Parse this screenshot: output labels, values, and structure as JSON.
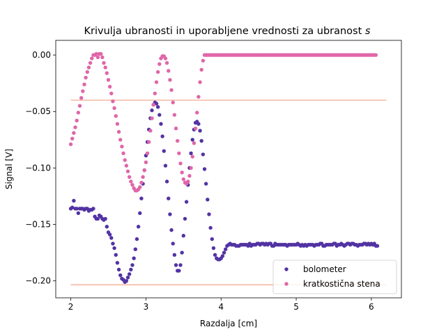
{
  "chart_data": {
    "type": "scatter",
    "title": "Krivulja ubranosti in uporabljene vrednosti za ubranost s",
    "xlabel": "Razdalja [cm]",
    "ylabel": "Signal [V]",
    "xlim": [
      1.8,
      6.4
    ],
    "ylim": [
      -0.215,
      0.013
    ],
    "x_ticks": [
      "2",
      "3",
      "4",
      "5",
      "6"
    ],
    "x_tick_values": [
      2,
      3,
      4,
      5,
      6
    ],
    "y_ticks": [
      "0.00",
      "−0.05",
      "−0.10",
      "−0.15",
      "−0.20"
    ],
    "y_tick_values": [
      0.0,
      -0.05,
      -0.1,
      -0.15,
      -0.2
    ],
    "grid": false,
    "legend_position": "bottom-right",
    "reference_lines": [
      {
        "y": -0.04,
        "x_range": [
          2.0,
          6.2
        ],
        "color": "#f4b9a2"
      },
      {
        "y": -0.2035,
        "x_range": [
          2.0,
          6.2
        ],
        "color": "#f4b9a2"
      }
    ],
    "series": [
      {
        "name": "bolometer",
        "color": "#5233a3",
        "x_start": 2.0,
        "x_step": 0.02,
        "values": [
          -0.136,
          -0.135,
          -0.129,
          -0.136,
          -0.136,
          -0.14,
          -0.136,
          -0.136,
          -0.136,
          -0.137,
          -0.136,
          -0.136,
          -0.138,
          -0.137,
          -0.137,
          -0.136,
          -0.143,
          -0.145,
          -0.145,
          -0.142,
          -0.143,
          -0.145,
          -0.146,
          -0.145,
          -0.152,
          -0.157,
          -0.159,
          -0.162,
          -0.167,
          -0.171,
          -0.177,
          -0.184,
          -0.19,
          -0.195,
          -0.198,
          -0.199,
          -0.201,
          -0.2,
          -0.197,
          -0.194,
          -0.19,
          -0.186,
          -0.18,
          -0.172,
          -0.163,
          -0.152,
          -0.14,
          -0.127,
          -0.114,
          -0.102,
          -0.089,
          -0.077,
          -0.066,
          -0.056,
          -0.049,
          -0.044,
          -0.042,
          -0.043,
          -0.046,
          -0.053,
          -0.061,
          -0.072,
          -0.085,
          -0.098,
          -0.112,
          -0.127,
          -0.141,
          -0.155,
          -0.167,
          -0.177,
          -0.186,
          -0.191,
          -0.191,
          -0.186,
          -0.175,
          -0.16,
          -0.145,
          -0.13,
          -0.115,
          -0.1,
          -0.087,
          -0.075,
          -0.066,
          -0.06,
          -0.059,
          -0.061,
          -0.067,
          -0.076,
          -0.088,
          -0.101,
          -0.114,
          -0.128,
          -0.141,
          -0.153,
          -0.163,
          -0.171,
          -0.177,
          -0.18,
          -0.181,
          -0.181,
          -0.18,
          -0.178,
          -0.175,
          -0.172,
          -0.169,
          -0.168,
          -0.167,
          -0.168,
          -0.168,
          -0.168,
          -0.169,
          -0.169,
          -0.169,
          -0.168,
          -0.168,
          -0.168,
          -0.168,
          -0.168,
          -0.169,
          -0.167,
          -0.169,
          -0.168,
          -0.168,
          -0.168,
          -0.167,
          -0.167,
          -0.168,
          -0.167,
          -0.167,
          -0.168,
          -0.167,
          -0.168,
          -0.167,
          -0.167,
          -0.169,
          -0.169,
          -0.167,
          -0.168,
          -0.168,
          -0.168,
          -0.168,
          -0.168,
          -0.168,
          -0.168,
          -0.169,
          -0.168,
          -0.168,
          -0.168,
          -0.168,
          -0.168,
          -0.168,
          -0.167,
          -0.168,
          -0.169,
          -0.168,
          -0.169,
          -0.168,
          -0.169,
          -0.168,
          -0.168,
          -0.168,
          -0.168,
          -0.169,
          -0.168,
          -0.168,
          -0.168,
          -0.167,
          -0.167,
          -0.169,
          -0.169,
          -0.168,
          -0.168,
          -0.168,
          -0.168,
          -0.168,
          -0.167,
          -0.167,
          -0.169,
          -0.168,
          -0.168,
          -0.167,
          -0.168,
          -0.169,
          -0.168,
          -0.167,
          -0.167,
          -0.168,
          -0.167,
          -0.167,
          -0.168,
          -0.168,
          -0.169,
          -0.168,
          -0.168,
          -0.168,
          -0.167,
          -0.167,
          -0.168,
          -0.167,
          -0.168,
          -0.167,
          -0.168,
          -0.167,
          -0.169,
          -0.169
        ]
      },
      {
        "name": "kratkostična stena",
        "color": "#e066a8",
        "x_start": 2.0,
        "x_step": 0.02,
        "values": [
          -0.079,
          -0.074,
          -0.069,
          -0.064,
          -0.058,
          -0.051,
          -0.045,
          -0.038,
          -0.032,
          -0.026,
          -0.02,
          -0.015,
          -0.011,
          -0.007,
          -0.003,
          0.0,
          -0.0,
          0.001,
          -0.002,
          0.001,
          0.001,
          -0.002,
          -0.007,
          -0.011,
          -0.016,
          -0.022,
          -0.028,
          -0.034,
          -0.041,
          -0.047,
          -0.054,
          -0.061,
          -0.068,
          -0.075,
          -0.081,
          -0.087,
          -0.093,
          -0.098,
          -0.103,
          -0.108,
          -0.112,
          -0.115,
          -0.118,
          -0.12,
          -0.12,
          -0.119,
          -0.117,
          -0.113,
          -0.108,
          -0.102,
          -0.095,
          -0.087,
          -0.077,
          -0.067,
          -0.056,
          -0.044,
          -0.034,
          -0.024,
          -0.015,
          -0.008,
          -0.003,
          -0.001,
          -0.001,
          -0.003,
          -0.007,
          -0.014,
          -0.022,
          -0.031,
          -0.042,
          -0.053,
          -0.065,
          -0.076,
          -0.087,
          -0.096,
          -0.104,
          -0.11,
          -0.113,
          -0.114,
          -0.112,
          -0.107,
          -0.1,
          -0.09,
          -0.078,
          -0.065,
          -0.051,
          -0.037,
          -0.024,
          -0.013,
          -0.005,
          -0.0,
          -0.0,
          -0.0,
          -0.0,
          -0.0,
          -0.0,
          -0.0,
          -0.0,
          -0.0,
          -0.0,
          -0.0,
          -0.0,
          -0.0,
          -0.0,
          -0.0,
          -0.0,
          -0.0,
          -0.0,
          -0.0,
          -0.0,
          -0.0,
          -0.0,
          -0.0,
          -0.0,
          -0.0,
          -0.0,
          -0.0,
          -0.0,
          -0.0,
          -0.0,
          -0.0,
          -0.0,
          -0.0,
          -0.0,
          -0.0,
          -0.0,
          -0.0,
          -0.0,
          -0.0,
          -0.0,
          -0.0,
          -0.0,
          -0.0,
          -0.0,
          -0.0,
          -0.0,
          -0.0,
          -0.0,
          -0.0,
          -0.0,
          -0.0,
          -0.0,
          -0.0,
          -0.0,
          -0.0,
          -0.0,
          -0.0,
          -0.0,
          -0.0,
          -0.0,
          -0.0,
          -0.0,
          -0.0,
          -0.0,
          -0.0,
          -0.0,
          -0.0,
          -0.0,
          -0.0,
          -0.0,
          -0.0,
          -0.0,
          -0.0,
          -0.0,
          -0.0,
          -0.0,
          -0.0,
          -0.0,
          -0.0,
          -0.0,
          -0.0,
          -0.0,
          -0.0,
          -0.0,
          -0.0,
          -0.0,
          -0.0,
          -0.0,
          -0.0,
          -0.0,
          -0.0,
          -0.0,
          -0.0,
          -0.0,
          -0.0,
          -0.0,
          -0.0,
          -0.0,
          -0.0,
          -0.0,
          -0.0,
          -0.0,
          -0.0,
          -0.0,
          -0.0,
          -0.0,
          -0.0,
          -0.0,
          -0.0,
          -0.0,
          -0.0,
          -0.0,
          -0.0,
          -0.0,
          -0.0
        ]
      }
    ]
  }
}
